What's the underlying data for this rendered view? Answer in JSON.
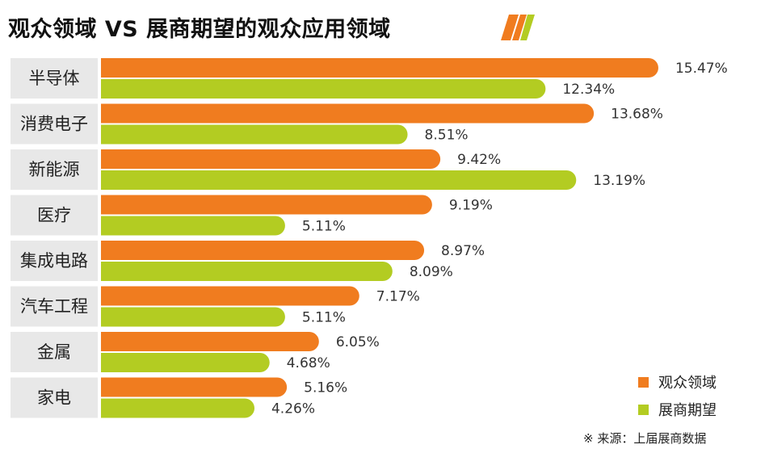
{
  "chart_data": {
    "type": "bar",
    "orientation": "horizontal",
    "title": "观众领域 VS 展商期望的观众应用领域",
    "categories": [
      "半导体",
      "消费电子",
      "新能源",
      "医疗",
      "集成电路",
      "汽车工程",
      "金属",
      "家电"
    ],
    "series": [
      {
        "name": "观众领域",
        "color": "#f07c1f",
        "values": [
          15.47,
          13.68,
          9.42,
          9.19,
          8.97,
          7.17,
          6.05,
          5.16
        ],
        "labels": [
          "15.47%",
          "13.68%",
          "9.42%",
          "9.19%",
          "8.97%",
          "7.17%",
          "6.05%",
          "5.16%"
        ]
      },
      {
        "name": "展商期望",
        "color": "#b3cc22",
        "values": [
          12.34,
          8.51,
          13.19,
          5.11,
          8.09,
          5.11,
          4.68,
          4.26
        ],
        "labels": [
          "12.34%",
          "8.51%",
          "13.19%",
          "5.11%",
          "8.09%",
          "5.11%",
          "4.68%",
          "4.26%"
        ]
      }
    ],
    "value_unit": "%",
    "xlim": [
      0,
      16
    ],
    "grid": false,
    "legend_position": "bottom-right"
  },
  "legend": [
    "观众领域",
    "展商期望"
  ],
  "source": "※ 来源：上届展商数据"
}
